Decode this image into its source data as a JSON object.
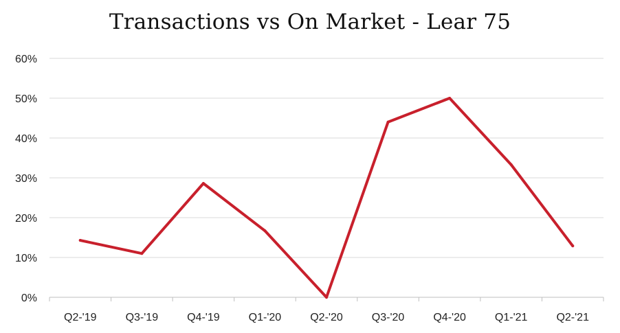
{
  "chart_data": {
    "type": "line",
    "title": "Transactions vs On Market - Lear 75",
    "xlabel": "",
    "ylabel": "",
    "categories": [
      "Q2-'19",
      "Q3-'19",
      "Q4-'19",
      "Q1-'20",
      "Q2-'20",
      "Q3-'20",
      "Q4-'20",
      "Q1-'21",
      "Q2-'21"
    ],
    "series": [
      {
        "values": [
          14.3,
          11,
          28.6,
          16.7,
          0,
          44,
          50,
          33.3,
          12.9
        ]
      }
    ],
    "y_ticks": [
      "0%",
      "10%",
      "20%",
      "30%",
      "40%",
      "50%",
      "60%"
    ],
    "ylim": [
      0,
      60
    ],
    "grid": true,
    "legend": "none",
    "colors": {
      "line": "#c8202c",
      "grid": "#d9d9d9",
      "axis": "#bfbfbf"
    }
  }
}
